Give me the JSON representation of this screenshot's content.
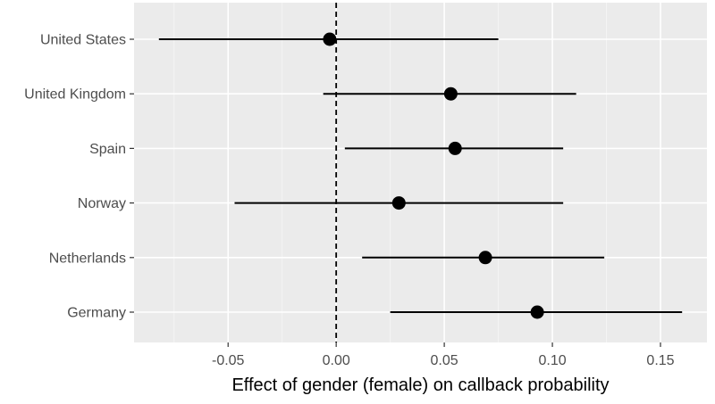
{
  "chart_data": {
    "type": "scatter",
    "subtype": "forest-plot",
    "title": "",
    "xlabel": "Effect of gender (female) on callback probability",
    "ylabel": "",
    "xlim": [
      -0.0935,
      0.1715
    ],
    "x_ticks": [
      -0.05,
      0.0,
      0.05,
      0.1,
      0.15
    ],
    "x_tick_labels": [
      "-0.05",
      "0.00",
      "0.05",
      "0.10",
      "0.15"
    ],
    "reference_line": {
      "x": 0,
      "style": "dashed"
    },
    "grid": true,
    "legend": "none",
    "categories": [
      "United States",
      "United Kingdom",
      "Spain",
      "Norway",
      "Netherlands",
      "Germany"
    ],
    "estimates": [
      -0.003,
      0.053,
      0.055,
      0.029,
      0.069,
      0.093
    ],
    "ci_low": [
      -0.082,
      -0.006,
      0.004,
      -0.047,
      0.012,
      0.025
    ],
    "ci_high": [
      0.075,
      0.111,
      0.105,
      0.105,
      0.124,
      0.16
    ],
    "colors": {
      "panel_background": "#ebebeb",
      "grid_major": "#ffffff",
      "grid_minor": "#f5f5f5",
      "points": "#000000",
      "error_bars": "#000000",
      "tick_text": "#4d4d4d"
    }
  }
}
